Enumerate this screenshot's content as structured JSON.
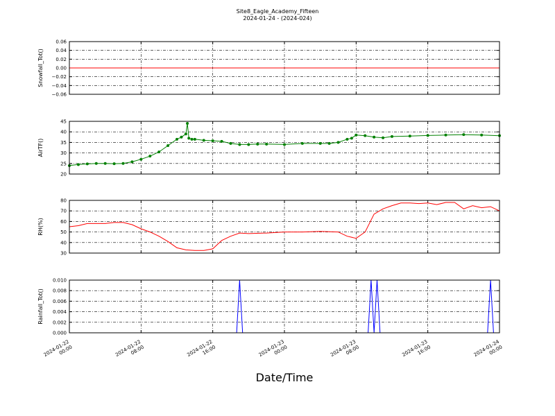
{
  "figure": {
    "title": "Site8_Eagle_Academy_Fifteen",
    "subtitle": "2024-01-24 - (2024-024)",
    "xlabel": "Date/Time"
  },
  "chart_data": [
    {
      "type": "line",
      "ylabel": "Snowfall_Tot()",
      "ylim": [
        -0.06,
        0.06
      ],
      "yticks": [
        "0.06",
        "0.04",
        "0.02",
        "0.00",
        "−0.02",
        "−0.04",
        "−0.06"
      ],
      "xlim": [
        "2024-01-22 00:00",
        "2024-01-24 00:00"
      ],
      "xticks": [
        "2024-01-22 00:00",
        "2024-01-22 08:00",
        "2024-01-22 16:00",
        "2024-01-23 00:00",
        "2024-01-23 08:00",
        "2024-01-23 16:00",
        "2024-01-24 00:00"
      ],
      "grid": true,
      "color": "#ff0000",
      "markers": false,
      "series": [
        {
          "x": [
            "2024-01-22 00:00",
            "2024-01-24 00:00"
          ],
          "y": [
            0,
            0
          ]
        }
      ]
    },
    {
      "type": "line",
      "ylabel": "AirTF()",
      "ylim": [
        20,
        45
      ],
      "yticks": [
        "45",
        "40",
        "35",
        "30",
        "25",
        "20"
      ],
      "grid": true,
      "color": "#008000",
      "markers": true,
      "series": [
        {
          "x": [
            "2024-01-22 00:00",
            "2024-01-22 01:00",
            "2024-01-22 02:00",
            "2024-01-22 03:00",
            "2024-01-22 04:00",
            "2024-01-22 05:00",
            "2024-01-22 06:00",
            "2024-01-22 07:00",
            "2024-01-22 08:00",
            "2024-01-22 09:00",
            "2024-01-22 10:00",
            "2024-01-22 11:00",
            "2024-01-22 12:00",
            "2024-01-22 12:30",
            "2024-01-22 13:00",
            "2024-01-22 13:10",
            "2024-01-22 13:20",
            "2024-01-22 13:40",
            "2024-01-22 14:00",
            "2024-01-22 15:00",
            "2024-01-22 16:00",
            "2024-01-22 17:00",
            "2024-01-22 18:00",
            "2024-01-22 19:00",
            "2024-01-22 20:00",
            "2024-01-22 21:00",
            "2024-01-22 22:00",
            "2024-01-23 00:00",
            "2024-01-23 02:00",
            "2024-01-23 04:00",
            "2024-01-23 05:00",
            "2024-01-23 06:00",
            "2024-01-23 07:00",
            "2024-01-23 07:30",
            "2024-01-23 08:00",
            "2024-01-23 09:00",
            "2024-01-23 10:00",
            "2024-01-23 11:00",
            "2024-01-23 12:00",
            "2024-01-23 14:00",
            "2024-01-23 16:00",
            "2024-01-23 18:00",
            "2024-01-23 20:00",
            "2024-01-23 22:00",
            "2024-01-24 00:00"
          ],
          "y": [
            24,
            24.5,
            24.8,
            25,
            25,
            24.9,
            25,
            25.8,
            27,
            28.5,
            30.5,
            33.5,
            36.5,
            37.5,
            39,
            44,
            37,
            36.5,
            36.5,
            36,
            35.8,
            35.5,
            34.5,
            34,
            34,
            34.2,
            34.2,
            34,
            34.5,
            34.5,
            34.5,
            35,
            36.5,
            37,
            38.5,
            38.2,
            37.5,
            37.2,
            37.8,
            38,
            38.3,
            38.5,
            38.7,
            38.5,
            38.2
          ]
        }
      ]
    },
    {
      "type": "line",
      "ylabel": "RH(%)",
      "ylim": [
        30,
        80
      ],
      "yticks": [
        "80",
        "70",
        "60",
        "50",
        "40",
        "30"
      ],
      "grid": true,
      "color": "#ff0000",
      "markers": false,
      "series": [
        {
          "x": [
            "2024-01-22 00:00",
            "2024-01-22 01:00",
            "2024-01-22 02:00",
            "2024-01-22 03:00",
            "2024-01-22 04:00",
            "2024-01-22 05:00",
            "2024-01-22 06:00",
            "2024-01-22 07:00",
            "2024-01-22 08:00",
            "2024-01-22 09:00",
            "2024-01-22 10:00",
            "2024-01-22 11:00",
            "2024-01-22 12:00",
            "2024-01-22 13:00",
            "2024-01-22 14:00",
            "2024-01-22 15:00",
            "2024-01-22 16:00",
            "2024-01-22 17:00",
            "2024-01-22 18:00",
            "2024-01-22 19:00",
            "2024-01-22 20:00",
            "2024-01-22 22:00",
            "2024-01-23 00:00",
            "2024-01-23 02:00",
            "2024-01-23 04:00",
            "2024-01-23 06:00",
            "2024-01-23 07:00",
            "2024-01-23 08:00",
            "2024-01-23 09:00",
            "2024-01-23 10:00",
            "2024-01-23 11:00",
            "2024-01-23 12:00",
            "2024-01-23 13:00",
            "2024-01-23 14:00",
            "2024-01-23 15:00",
            "2024-01-23 16:00",
            "2024-01-23 17:00",
            "2024-01-23 18:00",
            "2024-01-23 19:00",
            "2024-01-23 20:00",
            "2024-01-23 21:00",
            "2024-01-23 22:00",
            "2024-01-23 23:00",
            "2024-01-24 00:00"
          ],
          "y": [
            55,
            56,
            58,
            58,
            58,
            59,
            59,
            57,
            53,
            50,
            46,
            41,
            35,
            33,
            32.5,
            32.5,
            34,
            42,
            46,
            49,
            48.5,
            49,
            50,
            50,
            50.5,
            50,
            46,
            44,
            50,
            67,
            72,
            75,
            77.5,
            77.5,
            77,
            77.5,
            76,
            78,
            78,
            72,
            75,
            73,
            74,
            70
          ]
        }
      ]
    },
    {
      "type": "line",
      "ylabel": "Rainfall_Tot()",
      "ylim": [
        0,
        0.01
      ],
      "yticks": [
        "0.010",
        "0.008",
        "0.006",
        "0.004",
        "0.002",
        "0.000"
      ],
      "grid": true,
      "color": "#0000ff",
      "markers": false,
      "series": [
        {
          "x": [
            "2024-01-22 00:00",
            "2024-01-22 18:40",
            "2024-01-22 19:00",
            "2024-01-22 19:20",
            "2024-01-23 09:20",
            "2024-01-23 09:40",
            "2024-01-23 10:00",
            "2024-01-23 10:20",
            "2024-01-23 10:40",
            "2024-01-23 22:40",
            "2024-01-23 23:00",
            "2024-01-23 23:20",
            "2024-01-24 00:00"
          ],
          "y": [
            0,
            0,
            0.01,
            0,
            0,
            0.01,
            0,
            0.01,
            0,
            0,
            0.01,
            0,
            0
          ]
        }
      ]
    }
  ]
}
